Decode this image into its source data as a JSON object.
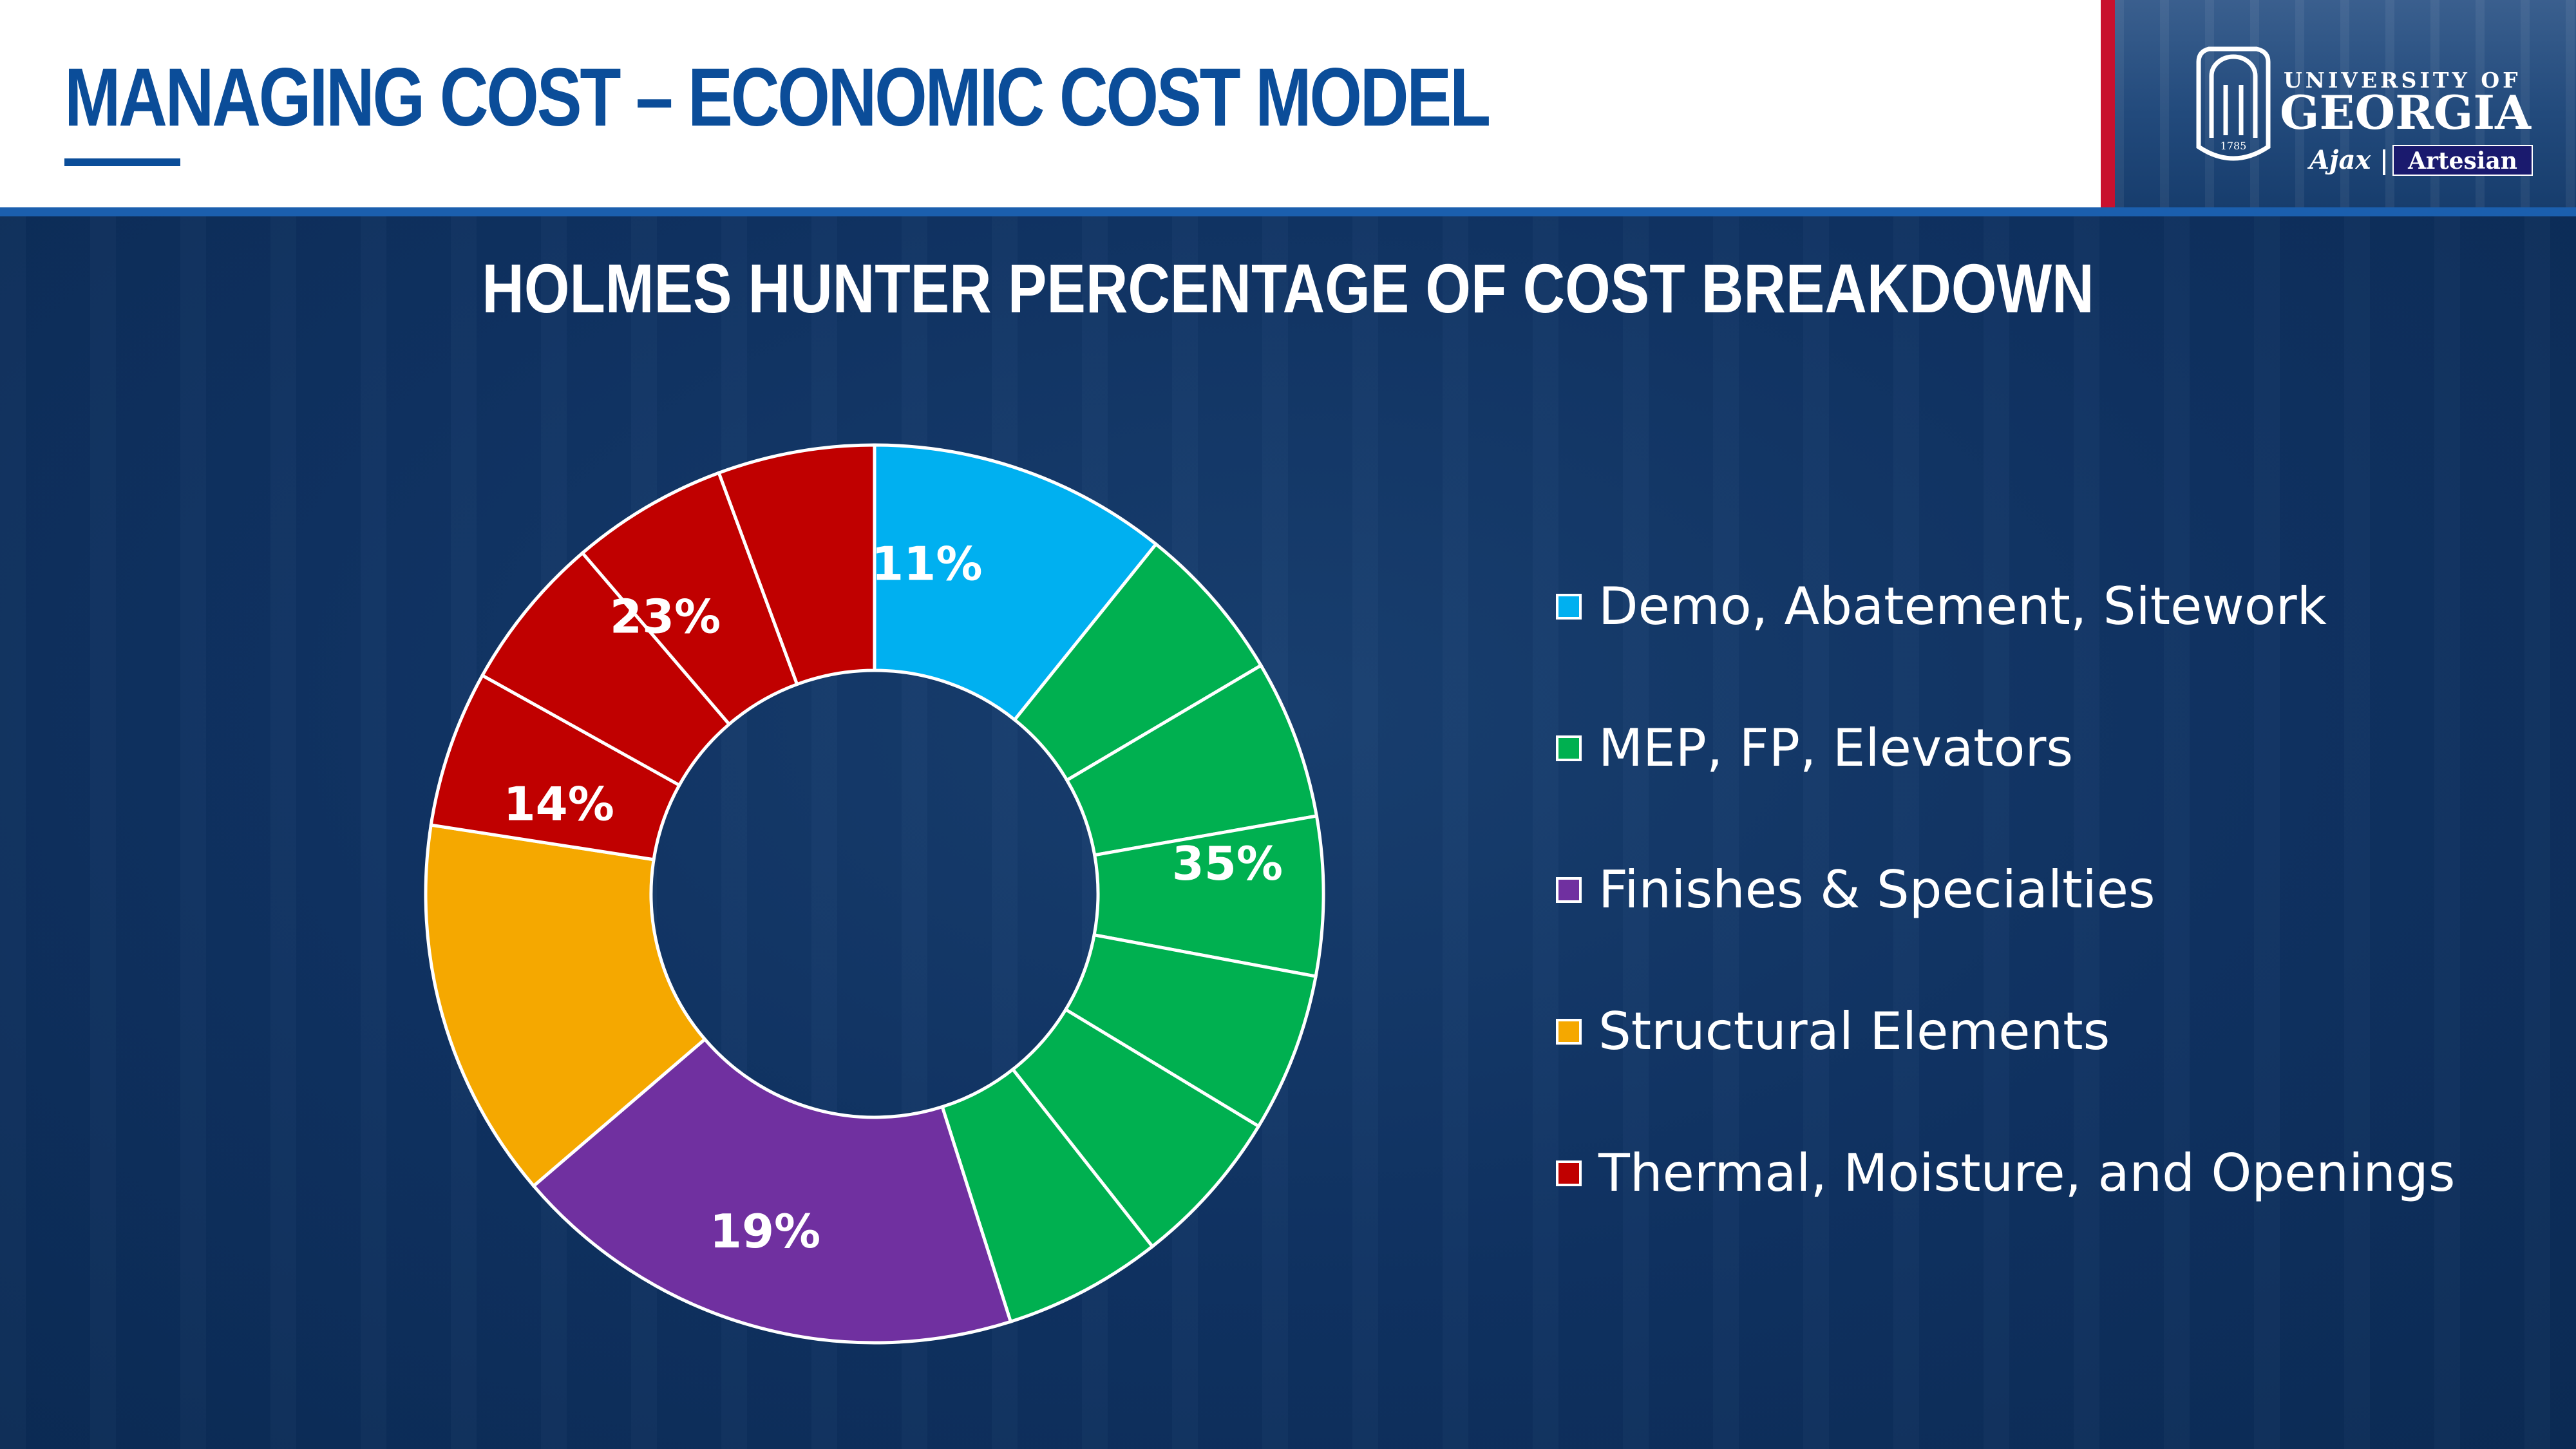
{
  "header": {
    "title": "MANAGING COST – ECONOMIC COST MODEL"
  },
  "logos": {
    "university_line1": "UNIVERSITY OF",
    "university_line2": "GEORGIA",
    "arch_year": "1785",
    "partner1": "Ajax",
    "partner2": "Artesian"
  },
  "chart_data": {
    "type": "pie",
    "variant": "donut",
    "title": "HOLMES HUNTER PERCENTAGE OF COST BREAKDOWN",
    "legend_placement": "right",
    "categories": [
      "Demo, Abatement, Sitework",
      "MEP, FP, Elevators",
      "Finishes & Specialties",
      "Structural Elements",
      "Thermal, Moisture, and Openings"
    ],
    "values": [
      11,
      35,
      19,
      14,
      23
    ],
    "labels": [
      "11%",
      "35%",
      "19%",
      "14%",
      "23%"
    ],
    "segments": [
      1,
      6,
      1,
      1,
      4
    ],
    "colors": [
      "#00b0f0",
      "#00b050",
      "#7030a0",
      "#f5a800",
      "#c00000"
    ]
  }
}
